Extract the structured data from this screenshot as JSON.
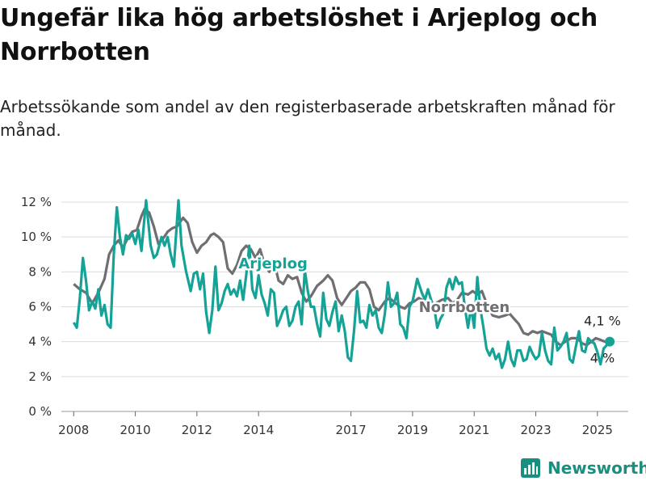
{
  "title": "Ungefär lika hög arbetslöshet i Arjeplog och Norrbotten",
  "subtitle": "Arbetssökande som andel av den registerbaserade arbetskraften månad för månad.",
  "brand": {
    "name": "Newsworthy",
    "icon": "newsworthy-logo-icon",
    "color": "#1a8f80"
  },
  "chart_data": {
    "type": "line",
    "ylim": [
      0,
      12
    ],
    "xlim": [
      2007.6,
      2026.0
    ],
    "y_ticks": [
      0,
      2,
      4,
      6,
      8,
      10,
      12
    ],
    "y_tick_labels": [
      "0 %",
      "2 %",
      "4 %",
      "6 %",
      "8 %",
      "10 %",
      "12 %"
    ],
    "x_ticks": [
      2008,
      2010,
      2012,
      2014,
      2017,
      2019,
      2021,
      2023,
      2025
    ],
    "x_tick_labels": [
      "2008",
      "2010",
      "2012",
      "2014",
      "2017",
      "2019",
      "2021",
      "2023",
      "2025"
    ],
    "grid": true,
    "series": [
      {
        "name": "Norrbotten",
        "color": "#6e6e73",
        "end_label": "4,1 %",
        "points": [
          [
            2008.0,
            7.3
          ],
          [
            2008.2,
            7.0
          ],
          [
            2008.4,
            6.8
          ],
          [
            2008.6,
            6.2
          ],
          [
            2008.8,
            6.8
          ],
          [
            2009.0,
            7.6
          ],
          [
            2009.15,
            9.0
          ],
          [
            2009.3,
            9.5
          ],
          [
            2009.45,
            9.8
          ],
          [
            2009.6,
            9.4
          ],
          [
            2009.75,
            9.9
          ],
          [
            2009.9,
            10.3
          ],
          [
            2010.05,
            10.4
          ],
          [
            2010.2,
            11.2
          ],
          [
            2010.3,
            11.6
          ],
          [
            2010.45,
            11.4
          ],
          [
            2010.6,
            10.6
          ],
          [
            2010.75,
            9.6
          ],
          [
            2010.9,
            9.9
          ],
          [
            2011.05,
            10.3
          ],
          [
            2011.2,
            10.5
          ],
          [
            2011.35,
            10.6
          ],
          [
            2011.55,
            11.1
          ],
          [
            2011.7,
            10.8
          ],
          [
            2011.85,
            9.7
          ],
          [
            2012.0,
            9.1
          ],
          [
            2012.15,
            9.5
          ],
          [
            2012.3,
            9.7
          ],
          [
            2012.45,
            10.1
          ],
          [
            2012.55,
            10.2
          ],
          [
            2012.7,
            10.0
          ],
          [
            2012.85,
            9.7
          ],
          [
            2013.0,
            8.2
          ],
          [
            2013.15,
            7.9
          ],
          [
            2013.3,
            8.4
          ],
          [
            2013.45,
            9.2
          ],
          [
            2013.6,
            9.5
          ],
          [
            2013.75,
            9.3
          ],
          [
            2013.9,
            8.8
          ],
          [
            2014.05,
            9.3
          ],
          [
            2014.2,
            8.4
          ],
          [
            2014.35,
            8.0
          ],
          [
            2014.5,
            8.6
          ],
          [
            2014.65,
            7.5
          ],
          [
            2014.8,
            7.3
          ],
          [
            2014.95,
            7.8
          ],
          [
            2015.1,
            7.6
          ],
          [
            2015.25,
            7.7
          ],
          [
            2015.4,
            6.8
          ],
          [
            2015.55,
            6.3
          ],
          [
            2015.7,
            6.6
          ],
          [
            2015.9,
            7.2
          ],
          [
            2016.1,
            7.5
          ],
          [
            2016.25,
            7.8
          ],
          [
            2016.4,
            7.5
          ],
          [
            2016.55,
            6.5
          ],
          [
            2016.7,
            6.1
          ],
          [
            2016.85,
            6.5
          ],
          [
            2017.0,
            6.9
          ],
          [
            2017.15,
            7.1
          ],
          [
            2017.3,
            7.4
          ],
          [
            2017.45,
            7.4
          ],
          [
            2017.6,
            7.0
          ],
          [
            2017.75,
            6.0
          ],
          [
            2017.9,
            5.8
          ],
          [
            2018.1,
            6.3
          ],
          [
            2018.25,
            6.5
          ],
          [
            2018.45,
            6.2
          ],
          [
            2018.6,
            6.0
          ],
          [
            2018.75,
            5.9
          ],
          [
            2018.9,
            6.2
          ],
          [
            2019.05,
            6.3
          ],
          [
            2019.2,
            6.5
          ],
          [
            2019.4,
            6.3
          ],
          [
            2019.6,
            6.0
          ],
          [
            2019.75,
            6.2
          ],
          [
            2019.95,
            6.4
          ],
          [
            2020.15,
            6.5
          ],
          [
            2020.3,
            6.2
          ],
          [
            2020.45,
            6.4
          ],
          [
            2020.6,
            6.8
          ],
          [
            2020.8,
            6.7
          ],
          [
            2020.95,
            6.9
          ],
          [
            2021.1,
            6.7
          ],
          [
            2021.25,
            6.9
          ],
          [
            2021.4,
            6.2
          ],
          [
            2021.6,
            5.5
          ],
          [
            2021.8,
            5.4
          ],
          [
            2022.0,
            5.5
          ],
          [
            2022.15,
            5.6
          ],
          [
            2022.3,
            5.3
          ],
          [
            2022.45,
            5.0
          ],
          [
            2022.6,
            4.5
          ],
          [
            2022.75,
            4.4
          ],
          [
            2022.9,
            4.6
          ],
          [
            2023.05,
            4.5
          ],
          [
            2023.2,
            4.6
          ],
          [
            2023.35,
            4.5
          ],
          [
            2023.5,
            4.4
          ],
          [
            2023.65,
            4.0
          ],
          [
            2023.8,
            3.8
          ],
          [
            2023.95,
            4.0
          ],
          [
            2024.15,
            4.2
          ],
          [
            2024.35,
            4.2
          ],
          [
            2024.5,
            3.9
          ],
          [
            2024.65,
            3.8
          ],
          [
            2024.8,
            4.0
          ],
          [
            2024.95,
            4.2
          ],
          [
            2025.1,
            4.1
          ],
          [
            2025.25,
            4.0
          ],
          [
            2025.4,
            4.1
          ]
        ]
      },
      {
        "name": "Arjeplog",
        "color": "#14a396",
        "end_label": "4 %",
        "points": [
          [
            2008.0,
            5.1
          ],
          [
            2008.1,
            4.8
          ],
          [
            2008.2,
            6.5
          ],
          [
            2008.3,
            8.8
          ],
          [
            2008.4,
            7.5
          ],
          [
            2008.5,
            5.8
          ],
          [
            2008.6,
            6.3
          ],
          [
            2008.7,
            5.9
          ],
          [
            2008.8,
            7.0
          ],
          [
            2008.9,
            5.5
          ],
          [
            2009.0,
            6.1
          ],
          [
            2009.1,
            5.0
          ],
          [
            2009.2,
            4.8
          ],
          [
            2009.3,
            9.0
          ],
          [
            2009.4,
            11.7
          ],
          [
            2009.5,
            10.0
          ],
          [
            2009.6,
            9.0
          ],
          [
            2009.7,
            10.1
          ],
          [
            2009.8,
            9.9
          ],
          [
            2009.9,
            10.2
          ],
          [
            2010.0,
            9.6
          ],
          [
            2010.1,
            10.4
          ],
          [
            2010.2,
            9.2
          ],
          [
            2010.35,
            12.1
          ],
          [
            2010.5,
            9.5
          ],
          [
            2010.6,
            8.8
          ],
          [
            2010.7,
            9.0
          ],
          [
            2010.85,
            10.0
          ],
          [
            2010.95,
            9.5
          ],
          [
            2011.05,
            10.0
          ],
          [
            2011.15,
            9.0
          ],
          [
            2011.25,
            8.3
          ],
          [
            2011.4,
            12.1
          ],
          [
            2011.5,
            9.5
          ],
          [
            2011.65,
            8.0
          ],
          [
            2011.8,
            6.9
          ],
          [
            2011.9,
            7.9
          ],
          [
            2012.0,
            8.0
          ],
          [
            2012.1,
            7.0
          ],
          [
            2012.2,
            7.9
          ],
          [
            2012.3,
            5.7
          ],
          [
            2012.4,
            4.5
          ],
          [
            2012.5,
            5.8
          ],
          [
            2012.6,
            8.3
          ],
          [
            2012.7,
            5.8
          ],
          [
            2012.8,
            6.2
          ],
          [
            2012.9,
            6.9
          ],
          [
            2013.0,
            7.3
          ],
          [
            2013.1,
            6.7
          ],
          [
            2013.2,
            7.0
          ],
          [
            2013.3,
            6.6
          ],
          [
            2013.4,
            7.5
          ],
          [
            2013.5,
            6.4
          ],
          [
            2013.6,
            7.8
          ],
          [
            2013.7,
            9.5
          ],
          [
            2013.8,
            7.0
          ],
          [
            2013.9,
            6.5
          ],
          [
            2014.0,
            7.8
          ],
          [
            2014.1,
            6.7
          ],
          [
            2014.2,
            6.2
          ],
          [
            2014.3,
            5.5
          ],
          [
            2014.4,
            7.0
          ],
          [
            2014.5,
            6.8
          ],
          [
            2014.6,
            4.9
          ],
          [
            2014.7,
            5.3
          ],
          [
            2014.8,
            5.8
          ],
          [
            2014.9,
            6.0
          ],
          [
            2015.0,
            4.9
          ],
          [
            2015.1,
            5.2
          ],
          [
            2015.2,
            6.0
          ],
          [
            2015.3,
            6.3
          ],
          [
            2015.4,
            5.0
          ],
          [
            2015.5,
            8.1
          ],
          [
            2015.6,
            6.9
          ],
          [
            2015.7,
            6.0
          ],
          [
            2015.8,
            6.0
          ],
          [
            2015.9,
            5.0
          ],
          [
            2016.0,
            4.3
          ],
          [
            2016.1,
            6.8
          ],
          [
            2016.2,
            5.3
          ],
          [
            2016.3,
            4.9
          ],
          [
            2016.4,
            5.7
          ],
          [
            2016.5,
            6.3
          ],
          [
            2016.6,
            4.6
          ],
          [
            2016.7,
            5.5
          ],
          [
            2016.8,
            4.6
          ],
          [
            2016.9,
            3.1
          ],
          [
            2017.0,
            2.9
          ],
          [
            2017.1,
            4.6
          ],
          [
            2017.2,
            6.9
          ],
          [
            2017.3,
            5.1
          ],
          [
            2017.4,
            5.2
          ],
          [
            2017.5,
            4.8
          ],
          [
            2017.6,
            6.1
          ],
          [
            2017.7,
            5.5
          ],
          [
            2017.8,
            5.8
          ],
          [
            2017.9,
            4.8
          ],
          [
            2018.0,
            4.5
          ],
          [
            2018.1,
            5.6
          ],
          [
            2018.2,
            7.4
          ],
          [
            2018.3,
            6.0
          ],
          [
            2018.4,
            6.2
          ],
          [
            2018.5,
            6.8
          ],
          [
            2018.6,
            5.0
          ],
          [
            2018.7,
            4.8
          ],
          [
            2018.8,
            4.2
          ],
          [
            2018.9,
            6.0
          ],
          [
            2019.0,
            6.3
          ],
          [
            2019.15,
            7.6
          ],
          [
            2019.3,
            6.8
          ],
          [
            2019.4,
            6.4
          ],
          [
            2019.5,
            7.0
          ],
          [
            2019.6,
            6.4
          ],
          [
            2019.7,
            6.0
          ],
          [
            2019.8,
            4.8
          ],
          [
            2019.9,
            5.3
          ],
          [
            2020.0,
            5.6
          ],
          [
            2020.1,
            7.1
          ],
          [
            2020.2,
            7.6
          ],
          [
            2020.3,
            7.0
          ],
          [
            2020.4,
            7.7
          ],
          [
            2020.5,
            7.3
          ],
          [
            2020.6,
            7.4
          ],
          [
            2020.7,
            5.9
          ],
          [
            2020.8,
            4.8
          ],
          [
            2020.9,
            6.0
          ],
          [
            2021.0,
            4.8
          ],
          [
            2021.1,
            7.7
          ],
          [
            2021.2,
            5.9
          ],
          [
            2021.3,
            4.8
          ],
          [
            2021.4,
            3.6
          ],
          [
            2021.5,
            3.2
          ],
          [
            2021.6,
            3.6
          ],
          [
            2021.7,
            3.0
          ],
          [
            2021.8,
            3.3
          ],
          [
            2021.9,
            2.5
          ],
          [
            2022.0,
            3.0
          ],
          [
            2022.1,
            4.0
          ],
          [
            2022.2,
            3.0
          ],
          [
            2022.3,
            2.6
          ],
          [
            2022.4,
            3.5
          ],
          [
            2022.5,
            3.5
          ],
          [
            2022.6,
            2.9
          ],
          [
            2022.7,
            3.0
          ],
          [
            2022.8,
            3.7
          ],
          [
            2022.9,
            3.3
          ],
          [
            2023.0,
            3.0
          ],
          [
            2023.1,
            3.2
          ],
          [
            2023.2,
            4.5
          ],
          [
            2023.3,
            3.5
          ],
          [
            2023.4,
            2.9
          ],
          [
            2023.5,
            2.7
          ],
          [
            2023.6,
            4.8
          ],
          [
            2023.7,
            3.5
          ],
          [
            2023.8,
            3.7
          ],
          [
            2023.9,
            4.0
          ],
          [
            2024.0,
            4.5
          ],
          [
            2024.1,
            3.0
          ],
          [
            2024.2,
            2.8
          ],
          [
            2024.3,
            3.7
          ],
          [
            2024.4,
            4.6
          ],
          [
            2024.5,
            3.5
          ],
          [
            2024.6,
            3.4
          ],
          [
            2024.7,
            4.2
          ],
          [
            2024.8,
            4.0
          ],
          [
            2024.9,
            3.9
          ],
          [
            2025.0,
            3.4
          ],
          [
            2025.1,
            2.7
          ],
          [
            2025.2,
            3.6
          ],
          [
            2025.4,
            4.0
          ]
        ]
      }
    ],
    "annotations": [
      {
        "text": "Arjeplog",
        "series": "Arjeplog",
        "x": 2013.35,
        "y": 8.2
      },
      {
        "text": "Norrbotten",
        "series": "Norrbotten",
        "x": 2019.2,
        "y": 5.7
      }
    ]
  }
}
